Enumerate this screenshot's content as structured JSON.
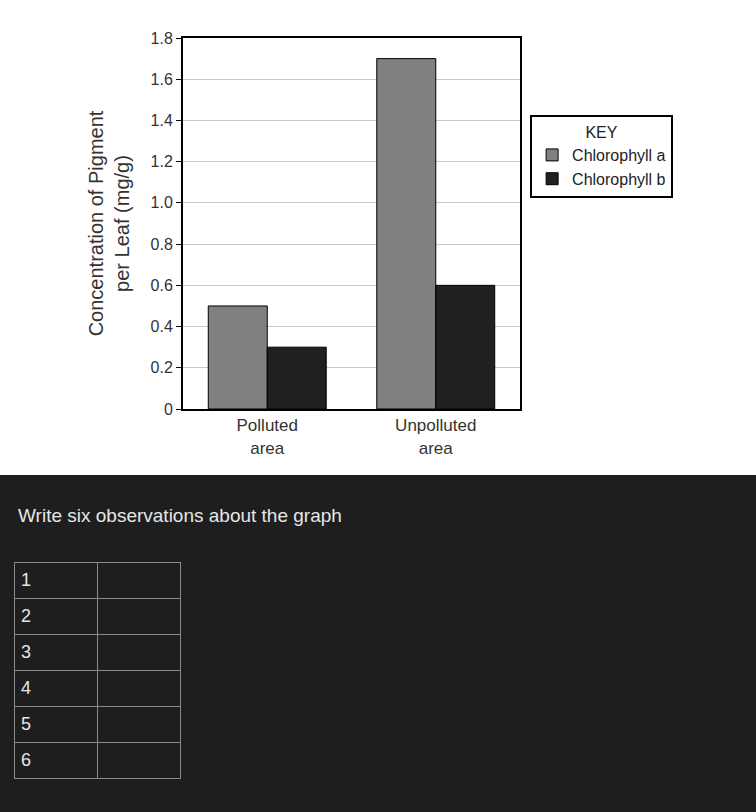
{
  "chart_data": {
    "type": "bar",
    "y_label": "Concentration of Pigment\nper Leaf (mg/g)",
    "categories": [
      "Polluted area",
      "Unpolluted area"
    ],
    "series": [
      {
        "name": "Chlorophyll a",
        "color": "#808080",
        "values": [
          0.5,
          1.7
        ]
      },
      {
        "name": "Chlorophyll b",
        "color": "#202020",
        "values": [
          0.3,
          0.6
        ]
      }
    ],
    "ylim": [
      0,
      1.8
    ],
    "yticks": [
      0,
      0.2,
      0.4,
      0.6,
      0.8,
      {
        "value": 1,
        "label": "1.0"
      },
      1.2,
      1.4,
      1.6,
      1.8
    ],
    "grid": true,
    "legend_title": "KEY",
    "legend": "right"
  },
  "document": {
    "prompt": "Write six observations about the graph",
    "table": {
      "rows": [
        "1",
        "2",
        "3",
        "4",
        "5",
        "6"
      ]
    }
  }
}
